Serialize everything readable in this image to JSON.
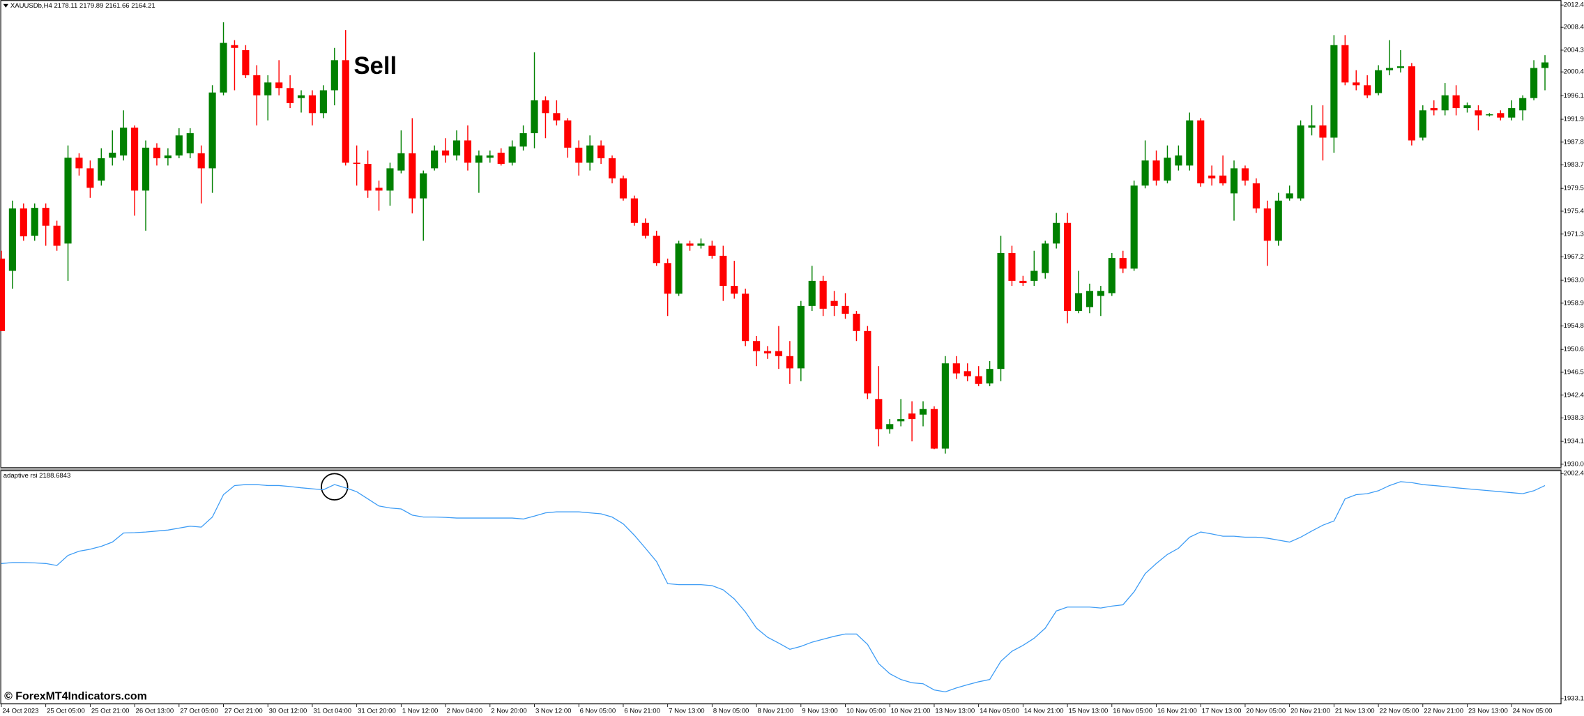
{
  "chart_data": [
    {
      "type": "candlestick",
      "title": "XAUUSDb,H4 2178.11 2179.89 2161.66 2164.21",
      "annotation": "Sell",
      "up_color": "#008000",
      "down_color": "#ff0000",
      "xlim": [
        -0.1,
        140.4
      ],
      "ylim": [
        1929.4,
        2013.3
      ],
      "yticks": [
        2012.4,
        2008.4,
        2004.3,
        2000.4,
        1996.1,
        1991.9,
        1987.8,
        1983.7,
        1979.5,
        1975.4,
        1971.3,
        1967.2,
        {
          "value": 1963,
          "label": "1963.0"
        },
        1958.9,
        1954.8,
        1950.6,
        1946.5,
        1942.4,
        1938.3,
        1934.1,
        {
          "value": 1930,
          "label": "1930.0"
        }
      ],
      "open": [
        1966.9,
        1964.7,
        1975.9,
        1971.0,
        1976.0,
        1972.8,
        1969.6,
        1985.0,
        1983.1,
        1980.9,
        1985.0,
        1985.4,
        1990.4,
        1979.1,
        1986.8,
        1984.9,
        1985.4,
        1985.8,
        1985.8,
        1983.1,
        1996.7,
        2005.2,
        2004.3,
        1999.8,
        1996.2,
        1998.5,
        1997.5,
        1995.7,
        1996.2,
        1993.0,
        1997.1,
        2002.5,
        1984.1,
        1983.9,
        1979.6,
        1979.1,
        1982.7,
        1985.8,
        1977.7,
        1983.1,
        1986.3,
        1985.4,
        1988.1,
        1984.1,
        1985.0,
        1985.9,
        1984.1,
        1987.0,
        1989.4,
        1995.3,
        1993.0,
        1991.7,
        1986.8,
        1984.1,
        1987.2,
        1984.9,
        1981.3,
        1977.7,
        1973.3,
        1971.0,
        1966.1,
        1960.6,
        1969.6,
        1969.2,
        1969.2,
        1967.4,
        1962.0,
        1960.6,
        1952.1,
        1950.3,
        1950.3,
        1949.4,
        1947.2,
        1958.4,
        1962.9,
        1959.3,
        1958.4,
        1957.0,
        1953.9,
        1941.7,
        1936.3,
        1937.7,
        1939.1,
        1938.9,
        1939.9,
        1932.8,
        1948.1,
        1946.7,
        1945.8,
        1944.5,
        1947.1,
        1967.9,
        1962.9,
        1962.9,
        1964.3,
        1969.6,
        1973.3,
        1957.5,
        1958.2,
        1960.2,
        1960.7,
        1967.0,
        1965.1,
        1980.0,
        1984.5,
        1980.9,
        1983.6,
        1983.6,
        1991.7,
        1981.8,
        1981.8,
        1978.6,
        1983.1,
        1980.4,
        1975.9,
        1970.1,
        1977.7,
        1977.7,
        1990.4,
        1990.8,
        1988.6,
        2005.2,
        1998.5,
        1998.0,
        1996.6,
        2000.7,
        2001.1,
        2001.4,
        1988.6,
        1993.9,
        1993.5,
        1996.2,
        1993.9,
        1993.5,
        1992.6,
        1993.0,
        1992.2,
        1993.5,
        1995.7,
        2001.1
      ],
      "high": [
        1968.3,
        1977.3,
        1976.8,
        1976.8,
        1976.8,
        1973.7,
        1987.2,
        1985.8,
        1984.5,
        1986.7,
        1989.9,
        1993.5,
        1990.8,
        1988.1,
        1987.6,
        1986.7,
        1990.3,
        1990.3,
        1987.2,
        1998.0,
        2009.3,
        2006.1,
        2005.2,
        2001.6,
        1999.8,
        2002.5,
        1999.8,
        1997.1,
        1997.1,
        1998.0,
        2004.7,
        2007.9,
        1987.2,
        1986.3,
        1980.9,
        1984.1,
        1989.9,
        1992.1,
        1982.7,
        1987.2,
        1988.5,
        1989.9,
        1990.8,
        1986.3,
        1986.3,
        1986.7,
        1988.1,
        1990.8,
        2003.9,
        1996.0,
        1995.3,
        1992.1,
        1988.1,
        1989.0,
        1988.1,
        1985.4,
        1981.8,
        1978.2,
        1974.1,
        1971.9,
        1966.9,
        1970.1,
        1970.1,
        1970.5,
        1970.1,
        1969.2,
        1966.5,
        1961.5,
        1953.0,
        1951.2,
        1954.8,
        1952.1,
        1959.3,
        1965.6,
        1963.8,
        1961.1,
        1960.7,
        1957.5,
        1954.8,
        1947.6,
        1938.1,
        1941.7,
        1941.3,
        1941.3,
        1940.4,
        1949.4,
        1949.4,
        1948.1,
        1947.6,
        1948.5,
        1971.0,
        1969.2,
        1963.8,
        1968.3,
        1970.1,
        1975.1,
        1975.1,
        1964.7,
        1962.4,
        1962.0,
        1967.9,
        1968.3,
        1980.9,
        1988.1,
        1986.3,
        1987.2,
        1987.2,
        1993.1,
        1992.1,
        1983.6,
        1985.4,
        1984.5,
        1983.6,
        1981.3,
        1977.3,
        1978.7,
        1980.0,
        1991.7,
        1994.4,
        1994.4,
        2007.0,
        2007.0,
        2000.7,
        1999.8,
        2001.6,
        2006.1,
        2004.3,
        2002.0,
        1994.4,
        1995.3,
        1998.4,
        1998.0,
        1994.9,
        1994.4,
        1993.0,
        1993.5,
        1995.3,
        1996.2,
        2002.5,
        2003.4
      ],
      "low": [
        1953.9,
        1961.5,
        1970.1,
        1970.1,
        1969.2,
        1968.3,
        1962.9,
        1981.8,
        1977.8,
        1980.0,
        1983.6,
        1984.5,
        1974.6,
        1971.9,
        1983.6,
        1983.6,
        1984.9,
        1984.9,
        1976.8,
        1978.7,
        1996.2,
        1997.1,
        1999.3,
        1990.8,
        1991.7,
        1996.2,
        1993.9,
        1993.1,
        1990.8,
        1992.1,
        1994.4,
        1983.6,
        1980.0,
        1977.8,
        1975.5,
        1976.4,
        1982.2,
        1975.0,
        1970.1,
        1982.7,
        1984.1,
        1984.5,
        1982.7,
        1978.7,
        1984.1,
        1983.6,
        1983.6,
        1986.3,
        1986.7,
        1988.5,
        1990.8,
        1985.0,
        1981.8,
        1982.7,
        1983.9,
        1980.4,
        1977.3,
        1972.8,
        1970.5,
        1965.6,
        1956.6,
        1960.2,
        1968.3,
        1968.7,
        1966.9,
        1959.3,
        1959.7,
        1951.2,
        1947.6,
        1948.9,
        1947.1,
        1944.4,
        1944.9,
        1957.5,
        1956.6,
        1956.6,
        1956.1,
        1952.1,
        1941.7,
        1933.2,
        1935.5,
        1936.8,
        1934.1,
        1936.8,
        1932.7,
        1931.9,
        1945.3,
        1944.9,
        1944.0,
        1944.0,
        1944.9,
        1962.0,
        1962.0,
        1962.0,
        1963.3,
        1968.7,
        1955.3,
        1957.1,
        1957.1,
        1956.6,
        1960.2,
        1964.3,
        1964.7,
        1979.5,
        1980.0,
        1980.4,
        1982.7,
        1982.7,
        1979.8,
        1980.0,
        1980.0,
        1973.7,
        1980.0,
        1975.1,
        1965.6,
        1969.2,
        1977.3,
        1977.3,
        1989.0,
        1984.5,
        1985.9,
        1998.0,
        1997.1,
        1995.7,
        1996.2,
        1999.8,
        2000.3,
        1987.2,
        1988.1,
        1992.6,
        1992.6,
        1992.6,
        1993.1,
        1989.9,
        1992.4,
        1991.7,
        1991.7,
        1991.7,
        1995.3,
        1997.1
      ],
      "close": [
        1953.9,
        1975.9,
        1970.9,
        1976.0,
        1972.8,
        1969.2,
        1985.0,
        1983.1,
        1979.6,
        1984.9,
        1985.9,
        1990.4,
        1979.1,
        1986.8,
        1984.9,
        1985.4,
        1989.0,
        1989.4,
        1983.1,
        1996.7,
        2005.6,
        2004.7,
        1999.8,
        1996.2,
        1998.5,
        1997.5,
        1994.8,
        1996.2,
        1993.0,
        1997.1,
        2002.5,
        1984.1,
        1983.9,
        1979.1,
        1979.1,
        1983.1,
        1985.8,
        1977.7,
        1982.2,
        1986.3,
        1985.4,
        1988.1,
        1984.1,
        1985.4,
        1985.4,
        1983.9,
        1987.0,
        1989.4,
        1995.3,
        1993.0,
        1991.7,
        1986.8,
        1984.1,
        1987.2,
        1984.9,
        1981.3,
        1977.7,
        1973.3,
        1971.0,
        1966.1,
        1960.6,
        1969.6,
        1969.2,
        1969.6,
        1967.4,
        1962.0,
        1960.6,
        1952.1,
        1950.3,
        1949.9,
        1949.4,
        1947.2,
        1958.4,
        1962.9,
        1957.9,
        1958.4,
        1957.0,
        1953.9,
        1942.7,
        1936.3,
        1937.2,
        1938.1,
        1938.1,
        1939.9,
        1932.8,
        1948.1,
        1946.3,
        1945.8,
        1944.4,
        1947.1,
        1967.9,
        1962.9,
        1962.5,
        1964.7,
        1969.6,
        1973.3,
        1957.5,
        1960.7,
        1961.1,
        1961.1,
        1967.0,
        1965.1,
        1980.0,
        1984.5,
        1980.9,
        1985.0,
        1985.4,
        1991.7,
        1980.4,
        1981.3,
        1980.4,
        1983.1,
        1980.9,
        1975.9,
        1970.1,
        1977.3,
        1978.6,
        1990.8,
        1990.8,
        1988.6,
        2005.2,
        1998.5,
        1998.0,
        1996.2,
        2000.7,
        2001.1,
        2001.4,
        1988.1,
        1993.5,
        1993.5,
        1996.2,
        1993.9,
        1994.4,
        1992.6,
        1992.8,
        1992.2,
        1993.9,
        1995.7,
        2001.1,
        2002.1
      ]
    },
    {
      "type": "line",
      "title": "adaptive rsi 2188.6843",
      "color": "#3d9cf5",
      "xlim": [
        -0.1,
        140.4
      ],
      "ylim": [
        1931.5,
        2003.3
      ],
      "yticks": [
        2002.4,
        1933.1
      ],
      "xticks": [
        {
          "value": 0,
          "label": "24 Oct 2023"
        },
        {
          "value": 4,
          "label": "25 Oct 05:00"
        },
        {
          "value": 8,
          "label": "25 Oct 21:00"
        },
        {
          "value": 12,
          "label": "26 Oct 13:00"
        },
        {
          "value": 16,
          "label": "27 Oct 05:00"
        },
        {
          "value": 20,
          "label": "27 Oct 21:00"
        },
        {
          "value": 24,
          "label": "30 Oct 12:00"
        },
        {
          "value": 28,
          "label": "31 Oct 04:00"
        },
        {
          "value": 32,
          "label": "31 Oct 20:00"
        },
        {
          "value": 36,
          "label": "1 Nov 12:00"
        },
        {
          "value": 40,
          "label": "2 Nov 04:00"
        },
        {
          "value": 44,
          "label": "2 Nov 20:00"
        },
        {
          "value": 48,
          "label": "3 Nov 12:00"
        },
        {
          "value": 52,
          "label": "6 Nov 05:00"
        },
        {
          "value": 56,
          "label": "6 Nov 21:00"
        },
        {
          "value": 60,
          "label": "7 Nov 13:00"
        },
        {
          "value": 64,
          "label": "8 Nov 05:00"
        },
        {
          "value": 68,
          "label": "8 Nov 21:00"
        },
        {
          "value": 72,
          "label": "9 Nov 13:00"
        },
        {
          "value": 76,
          "label": "10 Nov 05:00"
        },
        {
          "value": 80,
          "label": "10 Nov 21:00"
        },
        {
          "value": 84,
          "label": "13 Nov 13:00"
        },
        {
          "value": 88,
          "label": "14 Nov 05:00"
        },
        {
          "value": 92,
          "label": "14 Nov 21:00"
        },
        {
          "value": 96,
          "label": "15 Nov 13:00"
        },
        {
          "value": 100,
          "label": "16 Nov 05:00"
        },
        {
          "value": 104,
          "label": "16 Nov 21:00"
        },
        {
          "value": 108,
          "label": "17 Nov 13:00"
        },
        {
          "value": 112,
          "label": "20 Nov 05:00"
        },
        {
          "value": 116,
          "label": "20 Nov 21:00"
        },
        {
          "value": 120,
          "label": "21 Nov 13:00"
        },
        {
          "value": 124,
          "label": "22 Nov 05:00"
        },
        {
          "value": 128,
          "label": "22 Nov 21:00"
        },
        {
          "value": 132,
          "label": "23 Nov 13:00"
        },
        {
          "value": 136,
          "label": "24 Nov 05:00"
        }
      ],
      "values": [
        1974.7,
        1975.0,
        1975.0,
        1974.9,
        1974.7,
        1974.1,
        1977.2,
        1978.5,
        1979.1,
        1980.0,
        1981.3,
        1984.1,
        1984.2,
        1984.4,
        1984.7,
        1985.0,
        1985.6,
        1986.2,
        1985.9,
        1989.0,
        1995.9,
        1998.7,
        1999.0,
        1999.0,
        1998.7,
        1998.7,
        1998.4,
        1998.0,
        1997.7,
        1997.4,
        1999.0,
        1998.0,
        1996.8,
        1994.6,
        1992.4,
        1991.8,
        1991.5,
        1989.6,
        1989.0,
        1989.0,
        1988.9,
        1988.7,
        1988.7,
        1988.7,
        1988.7,
        1988.7,
        1988.7,
        1988.4,
        1989.3,
        1990.3,
        1990.6,
        1990.6,
        1990.6,
        1990.3,
        1990.0,
        1989.0,
        1986.9,
        1983.4,
        1979.4,
        1975.3,
        1968.5,
        1968.2,
        1968.2,
        1968.2,
        1967.9,
        1966.6,
        1963.8,
        1959.8,
        1954.8,
        1952.0,
        1950.2,
        1948.3,
        1949.2,
        1950.5,
        1951.4,
        1952.3,
        1953.0,
        1953.0,
        1949.8,
        1943.9,
        1940.8,
        1939.0,
        1938.0,
        1937.7,
        1935.8,
        1935.2,
        1936.4,
        1937.4,
        1938.3,
        1939.0,
        1944.6,
        1947.7,
        1949.5,
        1951.7,
        1954.8,
        1960.1,
        1961.3,
        1961.3,
        1961.3,
        1961.0,
        1961.6,
        1962.0,
        1966.0,
        1971.6,
        1974.7,
        1977.5,
        1979.4,
        1982.8,
        1984.4,
        1983.8,
        1983.1,
        1983.1,
        1982.8,
        1982.8,
        1982.5,
        1981.9,
        1981.3,
        1982.8,
        1984.7,
        1986.5,
        1987.8,
        1994.6,
        1995.9,
        1996.2,
        1997.1,
        1998.7,
        1999.9,
        1999.6,
        1999.0,
        1998.7,
        1998.4,
        1998.0,
        1997.7,
        1997.4,
        1997.1,
        1996.8,
        1996.5,
        1996.2,
        1997.1,
        1998.7
      ]
    }
  ],
  "watermark": "© ForexMT4Indicators.com"
}
